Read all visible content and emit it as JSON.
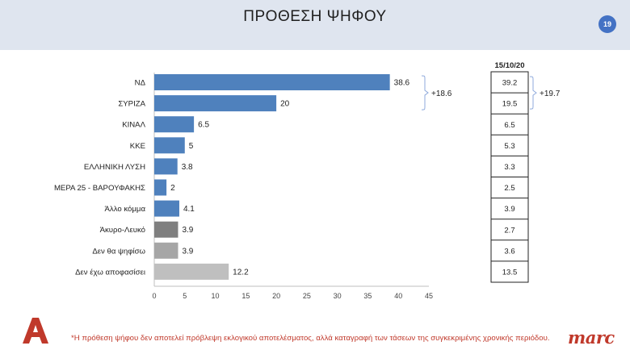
{
  "title": "ΠΡΟΘΕΣΗ ΨΗΦΟΥ",
  "page_number": "19",
  "footnote": "*Η πρόθεση ψήφου δεν αποτελεί πρόβλεψη εκλογικού αποτελέσματος, αλλά καταγραφή των τάσεων της συγκεκριμένης χρονικής περιόδου.",
  "brand": "marc",
  "colors": {
    "bar_blue": "#4f81bd",
    "bar_dark_gray": "#7f7f7f",
    "bar_gray": "#a6a6a6",
    "bar_light_gray": "#bfbfbf",
    "accent_red": "#c0392b"
  },
  "chart_data": {
    "type": "bar",
    "orientation": "horizontal",
    "categories": [
      "ΝΔ",
      "ΣΥΡΙΖΑ",
      "ΚΙΝΑΛ",
      "ΚΚΕ",
      "ΕΛΛΗΝΙΚΗ ΛΥΣΗ",
      "ΜΕΡΑ 25 - ΒΑΡΟΥΦΑΚΗΣ",
      "Άλλο κόμμα",
      "Άκυρο-Λευκό",
      "Δεν θα ψηφίσω",
      "Δεν έχω αποφασίσει"
    ],
    "values": [
      38.6,
      20,
      6.5,
      5,
      3.8,
      2,
      4.1,
      3.9,
      3.9,
      12.2
    ],
    "value_labels": [
      "38.6",
      "20",
      "6.5",
      "5",
      "3.8",
      "2",
      "4.1",
      "3.9",
      "3.9",
      "12.2"
    ],
    "bar_color_keys": [
      "bar_blue",
      "bar_blue",
      "bar_blue",
      "bar_blue",
      "bar_blue",
      "bar_blue",
      "bar_blue",
      "bar_dark_gray",
      "bar_gray",
      "bar_light_gray"
    ],
    "xlim": [
      0,
      45
    ],
    "xticks": [
      "0",
      "5",
      "10",
      "15",
      "20",
      "25",
      "30",
      "35",
      "40",
      "45"
    ],
    "grid": false,
    "gap_label": "+18.6",
    "comparison": {
      "header": "15/10/20",
      "values": [
        "39.2",
        "19.5",
        "6.5",
        "5.3",
        "3.3",
        "2.5",
        "3.9",
        "2.7",
        "3.6",
        "13.5"
      ],
      "gap_label": "+19.7"
    }
  }
}
